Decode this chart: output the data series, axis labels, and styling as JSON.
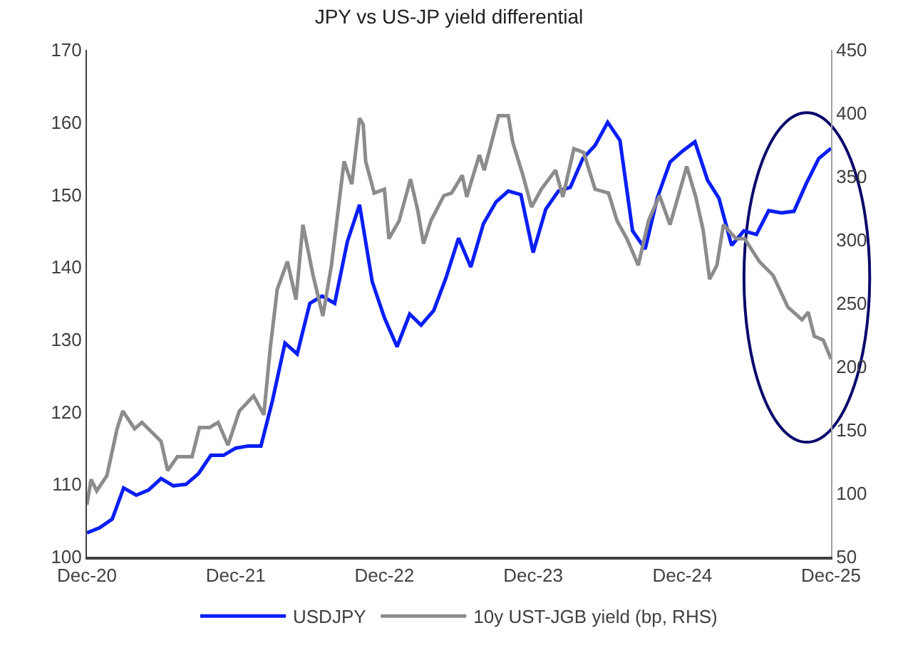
{
  "chart_data": {
    "type": "line",
    "title": "JPY vs US-JP yield differential",
    "xlim": [
      "2020-12-01",
      "2025-12-01"
    ],
    "xticks": [
      {
        "value": "2020-12-01",
        "label": "Dec-20"
      },
      {
        "value": "2021-12-01",
        "label": "Dec-21"
      },
      {
        "value": "2022-12-01",
        "label": "Dec-22"
      },
      {
        "value": "2023-12-01",
        "label": "Dec-23"
      },
      {
        "value": "2024-12-01",
        "label": "Dec-24"
      },
      {
        "value": "2025-12-01",
        "label": "Dec-25"
      }
    ],
    "ylim": [
      100,
      170
    ],
    "yticks": [
      100,
      110,
      120,
      130,
      140,
      150,
      160,
      170
    ],
    "y2lim": [
      50,
      450
    ],
    "y2ticks": [
      50,
      100,
      150,
      200,
      250,
      300,
      350,
      400,
      450
    ],
    "legend": "bottom",
    "marker": "none",
    "line_style": "solid",
    "series": [
      {
        "name": "USDJPY",
        "color": "#0a1ef5",
        "x": [
          "2020-12",
          "2021-01",
          "2021-02",
          "2021-03",
          "2021-04",
          "2021-05",
          "2021-06",
          "2021-07",
          "2021-08",
          "2021-09",
          "2021-10",
          "2021-11",
          "2021-12",
          "2022-01",
          "2022-02",
          "2022-03",
          "2022-04",
          "2022-05",
          "2022-06",
          "2022-07",
          "2022-08",
          "2022-09",
          "2022-10",
          "2022-11",
          "2022-12",
          "2023-01",
          "2023-02",
          "2023-03",
          "2023-04",
          "2023-05",
          "2023-06",
          "2023-07",
          "2023-08",
          "2023-09",
          "2023-10",
          "2023-11",
          "2023-12",
          "2024-01",
          "2024-02",
          "2024-03",
          "2024-04",
          "2024-05",
          "2024-06",
          "2024-07",
          "2024-08",
          "2024-09",
          "2024-10",
          "2024-11",
          "2024-12",
          "2025-01",
          "2025-02",
          "2025-03",
          "2025-04",
          "2025-05",
          "2025-06",
          "2025-07",
          "2025-08",
          "2025-09",
          "2025-10",
          "2025-11",
          "2025-12"
        ],
        "values": [
          103.3,
          104,
          105.2,
          109.5,
          108.5,
          109.2,
          110.8,
          109.8,
          110,
          111.5,
          114,
          114,
          115,
          115.3,
          115.3,
          121.5,
          129.5,
          128,
          135,
          136,
          135,
          143.5,
          148.6,
          138,
          133,
          129,
          133.5,
          132,
          134,
          138.5,
          144,
          140,
          146,
          149,
          150.5,
          150,
          142,
          148,
          150.5,
          151,
          155,
          156.8,
          160,
          157.5,
          145,
          142.5,
          149.6,
          154.5,
          156,
          157.3,
          152,
          149.5,
          143,
          145,
          144.5,
          147.8,
          147.5,
          147.7,
          151.5,
          155,
          156.4
        ]
      },
      {
        "name": "10y UST-JGB yield (bp, RHS)",
        "color": "#8c8c8c",
        "axis": "y2",
        "x": [
          "2020-12-01",
          "2020-12-11",
          "2020-12-25",
          "2021-01-19",
          "2021-02-13",
          "2021-02-27",
          "2021-03-28",
          "2021-04-15",
          "2021-06-01",
          "2021-06-17",
          "2021-07-11",
          "2021-08-16",
          "2021-09-03",
          "2021-09-28",
          "2021-10-19",
          "2021-11-12",
          "2021-12-10",
          "2022-01-14",
          "2022-02-08",
          "2022-02-24",
          "2022-03-13",
          "2022-04-07",
          "2022-04-28",
          "2022-05-15",
          "2022-06-09",
          "2022-07-03",
          "2022-07-24",
          "2022-08-24",
          "2022-09-12",
          "2022-10-01",
          "2022-10-10",
          "2022-10-16",
          "2022-11-06",
          "2022-12-01",
          "2022-12-12",
          "2023-01-06",
          "2023-02-03",
          "2023-02-21",
          "2023-03-07",
          "2023-03-25",
          "2023-04-26",
          "2023-05-15",
          "2023-06-10",
          "2023-06-21",
          "2023-07-22",
          "2023-08-03",
          "2023-09-07",
          "2023-10-01",
          "2023-10-12",
          "2023-11-06",
          "2023-11-27",
          "2023-12-21",
          "2024-01-25",
          "2024-02-12",
          "2024-03-10",
          "2024-04-03",
          "2024-05-01",
          "2024-06-03",
          "2024-06-24",
          "2024-07-18",
          "2024-08-15",
          "2024-09-09",
          "2024-10-06",
          "2024-11-01",
          "2024-12-12",
          "2025-01-03",
          "2025-01-21",
          "2025-02-06",
          "2025-02-24",
          "2025-03-12",
          "2025-04-12",
          "2025-05-03",
          "2025-06-08",
          "2025-07-12",
          "2025-08-17",
          "2025-09-21",
          "2025-10-06",
          "2025-10-21",
          "2025-11-12",
          "2025-12-01"
        ],
        "values": [
          91,
          111,
          102,
          114,
          151,
          165,
          151,
          156,
          141,
          118,
          129,
          129,
          152,
          152,
          156,
          138,
          165,
          177,
          162,
          215,
          261,
          283,
          253,
          312,
          272,
          240,
          280,
          362,
          344,
          396,
          391,
          362,
          337,
          340,
          301,
          315,
          348,
          323,
          297,
          315,
          335,
          337,
          351,
          334,
          367,
          355,
          398,
          398,
          377,
          351,
          326,
          340,
          355,
          334,
          372,
          369,
          340,
          337,
          315,
          301,
          280,
          315,
          335,
          312,
          358,
          334,
          308,
          269,
          280,
          312,
          301,
          301,
          283,
          272,
          247,
          237,
          243,
          224,
          221,
          206
        ]
      }
    ]
  }
}
